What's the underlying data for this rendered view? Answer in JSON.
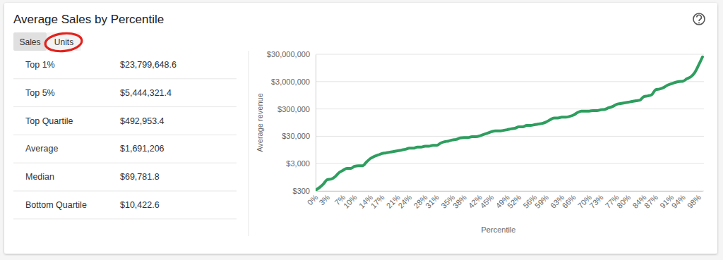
{
  "panel": {
    "title": "Average Sales by Percentile",
    "tabs": [
      "Sales",
      "Units"
    ],
    "table": {
      "rows": [
        [
          "Top 1%",
          "$23,799,648.6"
        ],
        [
          "Top 5%",
          "$5,444,321.4"
        ],
        [
          "Top Quartile",
          "$492,953.4"
        ],
        [
          "Average",
          "$1,691,206"
        ],
        [
          "Median",
          "$69,781.8"
        ],
        [
          "Bottom Quartile",
          "$10,422.6"
        ]
      ]
    }
  },
  "chart_data": {
    "type": "line",
    "xlabel": "Percentile",
    "ylabel": "Average revenue",
    "categories": [
      "0%",
      null,
      null,
      "3%",
      null,
      null,
      null,
      "7%",
      null,
      null,
      "10%",
      null,
      null,
      null,
      "14%",
      null,
      null,
      "17%",
      null,
      null,
      null,
      "21%",
      null,
      null,
      "24%",
      null,
      null,
      null,
      "28%",
      null,
      null,
      "31%",
      null,
      null,
      null,
      "35%",
      null,
      null,
      "38%",
      null,
      null,
      null,
      "42%",
      null,
      null,
      "45%",
      null,
      null,
      null,
      "49%",
      null,
      null,
      "52%",
      null,
      null,
      null,
      "56%",
      null,
      null,
      "59%",
      null,
      null,
      null,
      "63%",
      null,
      null,
      "66%",
      null,
      null,
      null,
      "70%",
      null,
      null,
      "73%",
      null,
      null,
      null,
      "77%",
      null,
      null,
      "80%",
      null,
      null,
      null,
      "84%",
      null,
      null,
      "87%",
      null,
      null,
      null,
      "91%",
      null,
      null,
      "94%",
      null,
      null,
      null,
      "98%",
      null
    ],
    "values": [
      320,
      400,
      540,
      780,
      820,
      1000,
      1400,
      1700,
      2000,
      2000,
      2400,
      2500,
      2500,
      3400,
      4600,
      5500,
      6200,
      7000,
      7400,
      7900,
      8300,
      8800,
      9400,
      10000,
      11000,
      11000,
      12000,
      12000,
      13000,
      13000,
      14000,
      14000,
      17000,
      19000,
      20000,
      22000,
      23000,
      26000,
      27000,
      27000,
      29000,
      29000,
      31000,
      35000,
      39000,
      44000,
      47000,
      47000,
      49000,
      52000,
      56000,
      59000,
      66000,
      66000,
      75000,
      75000,
      79000,
      84000,
      89000,
      100000,
      120000,
      140000,
      140000,
      150000,
      150000,
      160000,
      180000,
      220000,
      250000,
      250000,
      250000,
      260000,
      260000,
      280000,
      290000,
      330000,
      370000,
      440000,
      470000,
      500000,
      530000,
      560000,
      600000,
      630000,
      850000,
      900000,
      1000000,
      1500000,
      1600000,
      1800000,
      2200000,
      2500000,
      2800000,
      3000000,
      3100000,
      3800000,
      4500000,
      6400000,
      12000000,
      24000000
    ],
    "color": "#2e9e5f",
    "log": "y",
    "ylim": [
      300,
      30000000
    ],
    "yticks": [
      {
        "value": 300,
        "label": "$300"
      },
      {
        "value": 3000,
        "label": "$3,000"
      },
      {
        "value": 30000,
        "label": "$30,000"
      },
      {
        "value": 300000,
        "label": "$300,000"
      },
      {
        "value": 3000000,
        "label": "$3,000,000"
      },
      {
        "value": 30000000,
        "label": "$30,000,000"
      }
    ],
    "grid": true
  }
}
